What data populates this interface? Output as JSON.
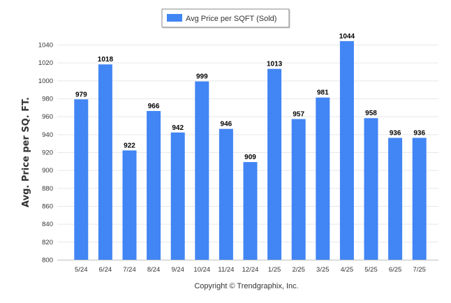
{
  "chart_data": {
    "type": "bar",
    "categories": [
      "5/24",
      "6/24",
      "7/24",
      "8/24",
      "9/24",
      "10/24",
      "11/24",
      "12/24",
      "1/25",
      "2/25",
      "3/25",
      "4/25",
      "5/25",
      "6/25",
      "7/25"
    ],
    "series": [
      {
        "name": "Avg Price per SQFT (Sold)",
        "values": [
          979,
          1018,
          922,
          966,
          942,
          999,
          946,
          909,
          1013,
          957,
          981,
          1044,
          958,
          936,
          936
        ],
        "color": "#4285f4"
      }
    ],
    "data_labels": [
      "979",
      "1018",
      "922",
      "966",
      "942",
      "999",
      "946",
      "909",
      "1013",
      "957",
      "981",
      "1044",
      "958",
      "936",
      "936"
    ],
    "title": "",
    "xlabel": "",
    "ylabel": "Avg. Price per SQ. FT.",
    "ylim": [
      800,
      1040
    ],
    "yticks": [
      800,
      820,
      840,
      860,
      880,
      900,
      920,
      940,
      960,
      980,
      1000,
      1020,
      1040
    ],
    "grid": true,
    "legend_position": "top-center"
  },
  "footer": {
    "copyright": "Copyright © Trendgraphix, Inc."
  }
}
